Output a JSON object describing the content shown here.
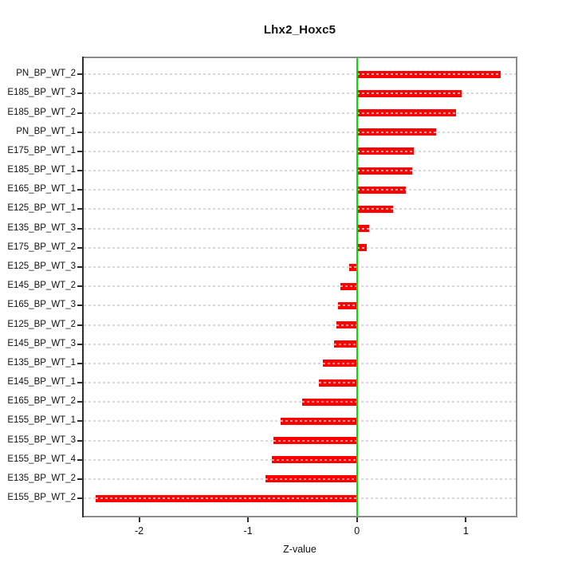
{
  "title": "Lhx2_Hoxc5",
  "chart_data": {
    "type": "bar",
    "orientation": "horizontal",
    "title": "Lhx2_Hoxc5",
    "xlabel": "Z-value",
    "ylabel": "",
    "categories": [
      "PN_BP_WT_2",
      "E185_BP_WT_3",
      "E185_BP_WT_2",
      "PN_BP_WT_1",
      "E175_BP_WT_1",
      "E185_BP_WT_1",
      "E165_BP_WT_1",
      "E125_BP_WT_1",
      "E135_BP_WT_3",
      "E175_BP_WT_2",
      "E125_BP_WT_3",
      "E145_BP_WT_2",
      "E165_BP_WT_3",
      "E125_BP_WT_2",
      "E145_BP_WT_3",
      "E135_BP_WT_1",
      "E145_BP_WT_1",
      "E165_BP_WT_2",
      "E155_BP_WT_1",
      "E155_BP_WT_3",
      "E155_BP_WT_4",
      "E135_BP_WT_2",
      "E155_BP_WT_2"
    ],
    "values": [
      1.32,
      0.96,
      0.91,
      0.73,
      0.52,
      0.51,
      0.45,
      0.33,
      0.11,
      0.09,
      -0.07,
      -0.15,
      -0.17,
      -0.19,
      -0.21,
      -0.31,
      -0.35,
      -0.5,
      -0.7,
      -0.77,
      -0.78,
      -0.84,
      -2.4
    ],
    "x_ticks": [
      "-2",
      "-1",
      "0",
      "1"
    ],
    "x_tick_values": [
      -2,
      -1,
      0,
      1
    ],
    "xlim": [
      -2.52,
      1.46
    ],
    "grid": "dashed horizontal row lines",
    "legend": "none",
    "colors": {
      "bar": "#ff0000",
      "bar_inner_dash": "#ff9d9d",
      "zero_line": "#00e000",
      "grid_line": "#d8d8d8",
      "box_border": "#8a8a8a",
      "text": "#111111"
    }
  }
}
